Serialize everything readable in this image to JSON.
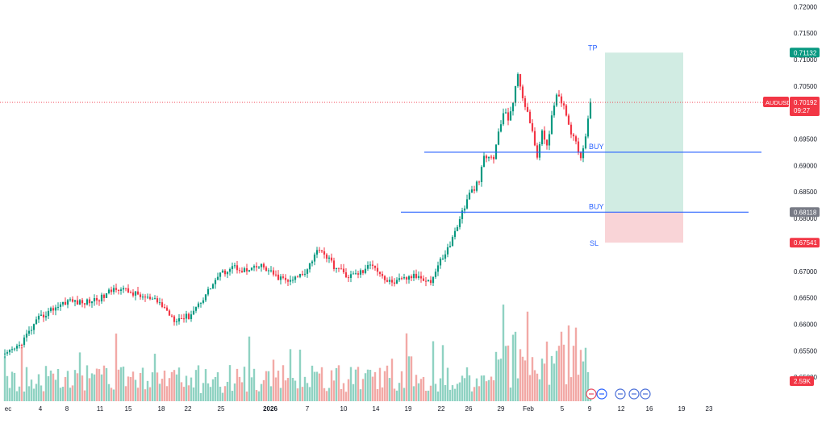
{
  "chart_data": {
    "type": "candlestick",
    "symbol": "AUDUSD",
    "price_axis": {
      "range": [
        0.6485,
        0.7205
      ],
      "ticks": [
        "0.72000",
        "0.71500",
        "0.71000",
        "0.70500",
        "0.70000",
        "0.69500",
        "0.69000",
        "0.68500",
        "0.68000",
        "0.67500",
        "0.67000",
        "0.66500",
        "0.66000",
        "0.65500",
        "0.65000"
      ]
    },
    "time_axis": {
      "labels": [
        "ec",
        "4",
        "8",
        "11",
        "15",
        "18",
        "22",
        "25",
        "2026",
        "7",
        "10",
        "14",
        "19",
        "22",
        "26",
        "29",
        "Feb",
        "5",
        "9",
        "12",
        "16",
        "19",
        "23"
      ]
    },
    "anchors": [
      {
        "x": 0,
        "y": 0.654
      },
      {
        "x": 6,
        "y": 0.656
      },
      {
        "x": 14,
        "y": 0.661
      },
      {
        "x": 20,
        "y": 0.663
      },
      {
        "x": 26,
        "y": 0.6645
      },
      {
        "x": 32,
        "y": 0.664
      },
      {
        "x": 40,
        "y": 0.665
      },
      {
        "x": 46,
        "y": 0.667
      },
      {
        "x": 52,
        "y": 0.666
      },
      {
        "x": 58,
        "y": 0.665
      },
      {
        "x": 64,
        "y": 0.664
      },
      {
        "x": 70,
        "y": 0.661
      },
      {
        "x": 76,
        "y": 0.6615
      },
      {
        "x": 82,
        "y": 0.665
      },
      {
        "x": 88,
        "y": 0.669
      },
      {
        "x": 94,
        "y": 0.671
      },
      {
        "x": 100,
        "y": 0.67
      },
      {
        "x": 106,
        "y": 0.671
      },
      {
        "x": 112,
        "y": 0.669
      },
      {
        "x": 118,
        "y": 0.668
      },
      {
        "x": 124,
        "y": 0.67
      },
      {
        "x": 130,
        "y": 0.6745
      },
      {
        "x": 136,
        "y": 0.671
      },
      {
        "x": 142,
        "y": 0.669
      },
      {
        "x": 148,
        "y": 0.67
      },
      {
        "x": 152,
        "y": 0.6715
      },
      {
        "x": 158,
        "y": 0.668
      },
      {
        "x": 162,
        "y": 0.668
      },
      {
        "x": 168,
        "y": 0.669
      },
      {
        "x": 172,
        "y": 0.669
      },
      {
        "x": 176,
        "y": 0.668
      },
      {
        "x": 180,
        "y": 0.672
      },
      {
        "x": 184,
        "y": 0.675
      },
      {
        "x": 188,
        "y": 0.68
      },
      {
        "x": 192,
        "y": 0.6845
      },
      {
        "x": 196,
        "y": 0.687
      },
      {
        "x": 198,
        "y": 0.6915
      },
      {
        "x": 202,
        "y": 0.6915
      },
      {
        "x": 204,
        "y": 0.696
      },
      {
        "x": 206,
        "y": 0.7
      },
      {
        "x": 208,
        "y": 0.699
      },
      {
        "x": 210,
        "y": 0.702
      },
      {
        "x": 212,
        "y": 0.707
      },
      {
        "x": 214,
        "y": 0.703
      },
      {
        "x": 216,
        "y": 0.7
      },
      {
        "x": 218,
        "y": 0.696
      },
      {
        "x": 220,
        "y": 0.692
      },
      {
        "x": 222,
        "y": 0.696
      },
      {
        "x": 224,
        "y": 0.694
      },
      {
        "x": 226,
        "y": 0.699
      },
      {
        "x": 228,
        "y": 0.703
      },
      {
        "x": 230,
        "y": 0.702
      },
      {
        "x": 232,
        "y": 0.7
      },
      {
        "x": 234,
        "y": 0.696
      },
      {
        "x": 236,
        "y": 0.695
      },
      {
        "x": 238,
        "y": 0.691
      },
      {
        "x": 240,
        "y": 0.696
      },
      {
        "x": 242,
        "y": 0.702
      }
    ],
    "volume_peak_label": "2.59K",
    "last_price": {
      "label": "AUDUSD",
      "value": "0.70192",
      "countdown": "09:27"
    },
    "trade_levels": [
      {
        "name": "TP",
        "value": 0.71132,
        "label": "0.71132",
        "color": "#089981"
      },
      {
        "name": "BUY",
        "value": 0.6925
      },
      {
        "name": "BUY",
        "value": 0.68118,
        "label": "0.68118",
        "color": "#787b86"
      },
      {
        "name": "SL",
        "value": 0.67541,
        "label": "0.67541",
        "color": "#f23645"
      }
    ],
    "position_tool": {
      "entry": 0.68118,
      "target": 0.71132,
      "stop": 0.67541,
      "profit_color": "#089981",
      "loss_color": "#f23645"
    }
  }
}
